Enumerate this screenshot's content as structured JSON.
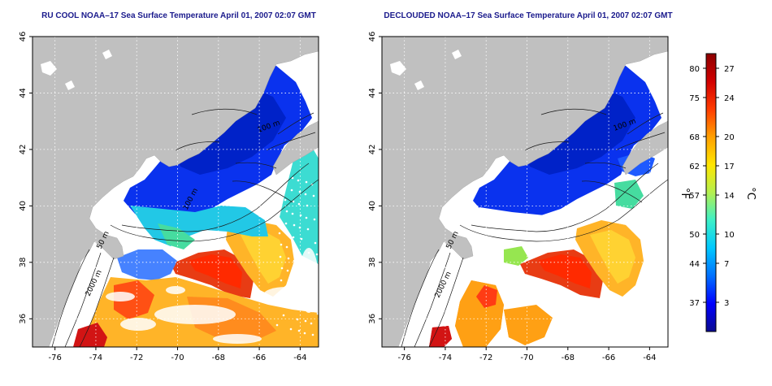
{
  "maps": [
    {
      "title": "RU COOL NOAA–17 Sea Surface Temperature April 01, 2007 02:07 GMT",
      "contour_labels": [
        "50 m",
        "2000 m",
        "100 m",
        "100 m"
      ]
    },
    {
      "title": "DECLOUDED NOAA–17 Sea Surface Temperature April 01, 2007 02:07 GMT",
      "contour_labels": [
        "50 m",
        "2000 m",
        "100 m"
      ]
    }
  ],
  "x_ticks": [
    "-76",
    "-74",
    "-72",
    "-70",
    "-68",
    "-66",
    "-64"
  ],
  "x_tick_values": [
    -76,
    -74,
    -72,
    -70,
    -68,
    -66,
    -64
  ],
  "y_ticks": [
    "36",
    "38",
    "40",
    "42",
    "44",
    "46"
  ],
  "y_tick_values": [
    36,
    38,
    40,
    42,
    44,
    46
  ],
  "lon_range": [
    -77.1,
    -63.1
  ],
  "lat_range": [
    35.0,
    46.0
  ],
  "colorbar": {
    "f_label": "°F",
    "c_label": "°C",
    "f_ticks": [
      "80",
      "75",
      "68",
      "62",
      "57",
      "50",
      "44",
      "37"
    ],
    "c_ticks": [
      "27",
      "24",
      "20",
      "17",
      "14",
      "10",
      "7",
      "3"
    ],
    "c_tick_values": [
      27,
      24,
      20,
      17,
      14,
      10,
      7,
      3
    ],
    "c_range": [
      0,
      28.5
    ],
    "colors": [
      "#0b0b8f",
      "#0000ff",
      "#0070ff",
      "#00c8ff",
      "#3cf0c8",
      "#b4f050",
      "#ffe600",
      "#ffa000",
      "#ff3c00",
      "#d20000",
      "#8c0000"
    ]
  },
  "colors": {
    "land": "#c0c0c0",
    "title": "#1a1a8c",
    "grid": "#ffffff"
  }
}
